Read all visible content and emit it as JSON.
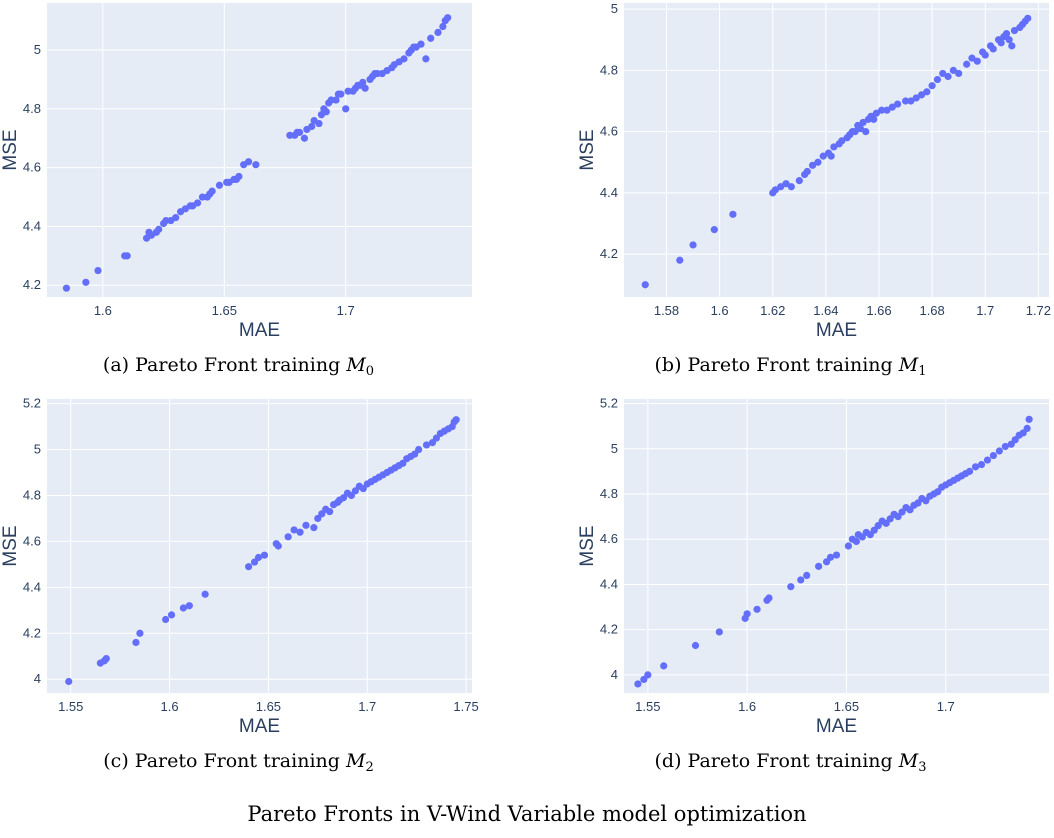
{
  "figure_caption": "Pareto Fronts in V-Wind Variable model optimization",
  "colors": {
    "marker": "#636efa",
    "plot_background": "#e5ecf6",
    "grid": "#ffffff",
    "axis_text": "#2a3f5f"
  },
  "chart_data": [
    {
      "type": "scatter",
      "caption": {
        "prefix": "(a) Pareto Front training ",
        "model": "M",
        "subscript": "0"
      },
      "xlabel": "MAE",
      "ylabel": "MSE",
      "xlim": [
        1.577,
        1.752
      ],
      "ylim": [
        4.16,
        5.16
      ],
      "xticks": [
        1.6,
        1.65,
        1.7
      ],
      "yticks": [
        4.2,
        4.4,
        4.6,
        4.8,
        5
      ],
      "xtick_labels": [
        "1.6",
        "1.65",
        "1.7"
      ],
      "ytick_labels": [
        "4.2",
        "4.4",
        "4.6",
        "4.8",
        "5"
      ],
      "grid": true,
      "x": [
        1.585,
        1.593,
        1.598,
        1.609,
        1.61,
        1.618,
        1.619,
        1.62,
        1.622,
        1.623,
        1.625,
        1.626,
        1.628,
        1.63,
        1.632,
        1.634,
        1.636,
        1.637,
        1.639,
        1.641,
        1.643,
        1.644,
        1.645,
        1.648,
        1.651,
        1.652,
        1.654,
        1.655,
        1.656,
        1.658,
        1.66,
        1.663,
        1.677,
        1.679,
        1.68,
        1.681,
        1.683,
        1.684,
        1.686,
        1.687,
        1.689,
        1.69,
        1.691,
        1.692,
        1.693,
        1.694,
        1.696,
        1.697,
        1.698,
        1.7,
        1.701,
        1.703,
        1.704,
        1.705,
        1.706,
        1.707,
        1.708,
        1.71,
        1.711,
        1.712,
        1.713,
        1.715,
        1.717,
        1.719,
        1.72,
        1.722,
        1.724,
        1.726,
        1.727,
        1.728,
        1.729,
        1.731,
        1.733,
        1.735,
        1.738,
        1.74,
        1.741,
        1.742
      ],
      "y": [
        4.19,
        4.21,
        4.25,
        4.3,
        4.3,
        4.36,
        4.38,
        4.37,
        4.38,
        4.39,
        4.41,
        4.42,
        4.42,
        4.43,
        4.45,
        4.46,
        4.47,
        4.47,
        4.48,
        4.5,
        4.5,
        4.51,
        4.52,
        4.54,
        4.55,
        4.55,
        4.56,
        4.56,
        4.57,
        4.61,
        4.62,
        4.61,
        4.71,
        4.71,
        4.72,
        4.72,
        4.7,
        4.73,
        4.74,
        4.76,
        4.75,
        4.78,
        4.8,
        4.79,
        4.82,
        4.83,
        4.83,
        4.85,
        4.85,
        4.8,
        4.86,
        4.86,
        4.87,
        4.88,
        4.88,
        4.89,
        4.87,
        4.9,
        4.91,
        4.92,
        4.92,
        4.92,
        4.93,
        4.94,
        4.95,
        4.96,
        4.97,
        4.99,
        5.0,
        5.01,
        5.01,
        5.02,
        4.97,
        5.04,
        5.06,
        5.08,
        5.1,
        5.11
      ]
    },
    {
      "type": "scatter",
      "caption": {
        "prefix": "(b) Pareto Front training ",
        "model": "M",
        "subscript": "1"
      },
      "xlabel": "MAE",
      "ylabel": "MSE",
      "xlim": [
        1.564,
        1.724
      ],
      "ylim": [
        4.06,
        5.02
      ],
      "xticks": [
        1.58,
        1.6,
        1.62,
        1.64,
        1.66,
        1.68,
        1.7,
        1.72
      ],
      "yticks": [
        4.2,
        4.4,
        4.6,
        4.8,
        5
      ],
      "xtick_labels": [
        "1.58",
        "1.6",
        "1.62",
        "1.64",
        "1.66",
        "1.68",
        "1.7",
        "1.72"
      ],
      "ytick_labels": [
        "4.2",
        "4.4",
        "4.6",
        "4.8",
        "5"
      ],
      "grid": true,
      "x": [
        1.572,
        1.585,
        1.59,
        1.598,
        1.605,
        1.62,
        1.621,
        1.623,
        1.625,
        1.627,
        1.63,
        1.632,
        1.633,
        1.635,
        1.637,
        1.639,
        1.641,
        1.642,
        1.643,
        1.645,
        1.646,
        1.648,
        1.649,
        1.65,
        1.651,
        1.652,
        1.653,
        1.654,
        1.655,
        1.656,
        1.657,
        1.658,
        1.659,
        1.661,
        1.663,
        1.665,
        1.667,
        1.67,
        1.672,
        1.674,
        1.676,
        1.678,
        1.68,
        1.682,
        1.684,
        1.686,
        1.688,
        1.69,
        1.693,
        1.695,
        1.697,
        1.699,
        1.7,
        1.702,
        1.703,
        1.705,
        1.706,
        1.707,
        1.708,
        1.709,
        1.71,
        1.711,
        1.713,
        1.714,
        1.715,
        1.716
      ],
      "y": [
        4.1,
        4.18,
        4.23,
        4.28,
        4.33,
        4.4,
        4.41,
        4.42,
        4.43,
        4.42,
        4.44,
        4.46,
        4.47,
        4.49,
        4.5,
        4.52,
        4.53,
        4.52,
        4.55,
        4.56,
        4.57,
        4.58,
        4.59,
        4.6,
        4.6,
        4.62,
        4.61,
        4.63,
        4.6,
        4.64,
        4.65,
        4.64,
        4.66,
        4.67,
        4.67,
        4.68,
        4.69,
        4.7,
        4.7,
        4.71,
        4.72,
        4.73,
        4.75,
        4.77,
        4.79,
        4.78,
        4.8,
        4.79,
        4.82,
        4.84,
        4.83,
        4.86,
        4.85,
        4.88,
        4.87,
        4.9,
        4.89,
        4.91,
        4.92,
        4.9,
        4.88,
        4.93,
        4.94,
        4.95,
        4.96,
        4.97
      ]
    },
    {
      "type": "scatter",
      "caption": {
        "prefix": "(c) Pareto Front training ",
        "model": "M",
        "subscript": "2"
      },
      "xlabel": "MAE",
      "ylabel": "MSE",
      "xlim": [
        1.538,
        1.753
      ],
      "ylim": [
        3.94,
        5.22
      ],
      "xticks": [
        1.55,
        1.6,
        1.65,
        1.7,
        1.75
      ],
      "yticks": [
        4,
        4.2,
        4.4,
        4.6,
        4.8,
        5,
        5.2
      ],
      "xtick_labels": [
        "1.55",
        "1.6",
        "1.65",
        "1.7",
        "1.75"
      ],
      "ytick_labels": [
        "4",
        "4.2",
        "4.4",
        "4.6",
        "4.8",
        "5",
        "5.2"
      ],
      "grid": true,
      "x": [
        1.549,
        1.565,
        1.567,
        1.568,
        1.583,
        1.585,
        1.598,
        1.601,
        1.607,
        1.61,
        1.618,
        1.64,
        1.643,
        1.645,
        1.648,
        1.654,
        1.655,
        1.66,
        1.663,
        1.666,
        1.669,
        1.673,
        1.675,
        1.677,
        1.679,
        1.681,
        1.683,
        1.685,
        1.686,
        1.688,
        1.69,
        1.692,
        1.694,
        1.696,
        1.698,
        1.7,
        1.702,
        1.704,
        1.706,
        1.708,
        1.71,
        1.712,
        1.714,
        1.716,
        1.718,
        1.72,
        1.722,
        1.724,
        1.726,
        1.73,
        1.733,
        1.735,
        1.737,
        1.739,
        1.741,
        1.743,
        1.744,
        1.745
      ],
      "y": [
        3.99,
        4.07,
        4.08,
        4.09,
        4.16,
        4.2,
        4.26,
        4.28,
        4.31,
        4.32,
        4.37,
        4.49,
        4.51,
        4.53,
        4.54,
        4.59,
        4.58,
        4.62,
        4.65,
        4.64,
        4.67,
        4.66,
        4.7,
        4.72,
        4.74,
        4.73,
        4.76,
        4.77,
        4.78,
        4.79,
        4.81,
        4.8,
        4.82,
        4.84,
        4.83,
        4.85,
        4.86,
        4.87,
        4.88,
        4.89,
        4.9,
        4.91,
        4.92,
        4.93,
        4.94,
        4.96,
        4.97,
        4.98,
        5.0,
        5.02,
        5.03,
        5.05,
        5.07,
        5.08,
        5.09,
        5.1,
        5.12,
        5.13
      ]
    },
    {
      "type": "scatter",
      "caption": {
        "prefix": "(d) Pareto Front training ",
        "model": "M",
        "subscript": "3"
      },
      "xlabel": "MAE",
      "ylabel": "MSE",
      "xlim": [
        1.538,
        1.752
      ],
      "ylim": [
        3.92,
        5.22
      ],
      "xticks": [
        1.55,
        1.6,
        1.65,
        1.7
      ],
      "yticks": [
        4,
        4.2,
        4.4,
        4.6,
        4.8,
        5,
        5.2
      ],
      "xtick_labels": [
        "1.55",
        "1.6",
        "1.65",
        "1.7"
      ],
      "ytick_labels": [
        "4",
        "4.2",
        "4.4",
        "4.6",
        "4.8",
        "5",
        "5.2"
      ],
      "grid": true,
      "x": [
        1.545,
        1.548,
        1.55,
        1.558,
        1.574,
        1.586,
        1.599,
        1.6,
        1.605,
        1.61,
        1.611,
        1.622,
        1.627,
        1.63,
        1.636,
        1.64,
        1.642,
        1.645,
        1.651,
        1.653,
        1.655,
        1.656,
        1.658,
        1.66,
        1.662,
        1.664,
        1.666,
        1.668,
        1.67,
        1.672,
        1.674,
        1.676,
        1.678,
        1.68,
        1.682,
        1.684,
        1.686,
        1.688,
        1.69,
        1.692,
        1.694,
        1.696,
        1.698,
        1.7,
        1.702,
        1.704,
        1.706,
        1.708,
        1.71,
        1.712,
        1.715,
        1.718,
        1.721,
        1.724,
        1.727,
        1.73,
        1.733,
        1.735,
        1.737,
        1.739,
        1.741,
        1.742
      ],
      "y": [
        3.96,
        3.98,
        4.0,
        4.04,
        4.13,
        4.19,
        4.25,
        4.27,
        4.29,
        4.33,
        4.34,
        4.39,
        4.42,
        4.44,
        4.48,
        4.5,
        4.52,
        4.53,
        4.57,
        4.6,
        4.59,
        4.62,
        4.61,
        4.63,
        4.62,
        4.64,
        4.66,
        4.68,
        4.67,
        4.69,
        4.71,
        4.7,
        4.72,
        4.74,
        4.73,
        4.75,
        4.76,
        4.78,
        4.77,
        4.79,
        4.8,
        4.81,
        4.83,
        4.84,
        4.85,
        4.86,
        4.87,
        4.88,
        4.89,
        4.9,
        4.92,
        4.93,
        4.95,
        4.97,
        4.99,
        5.01,
        5.02,
        5.04,
        5.06,
        5.07,
        5.09,
        5.13
      ]
    }
  ]
}
